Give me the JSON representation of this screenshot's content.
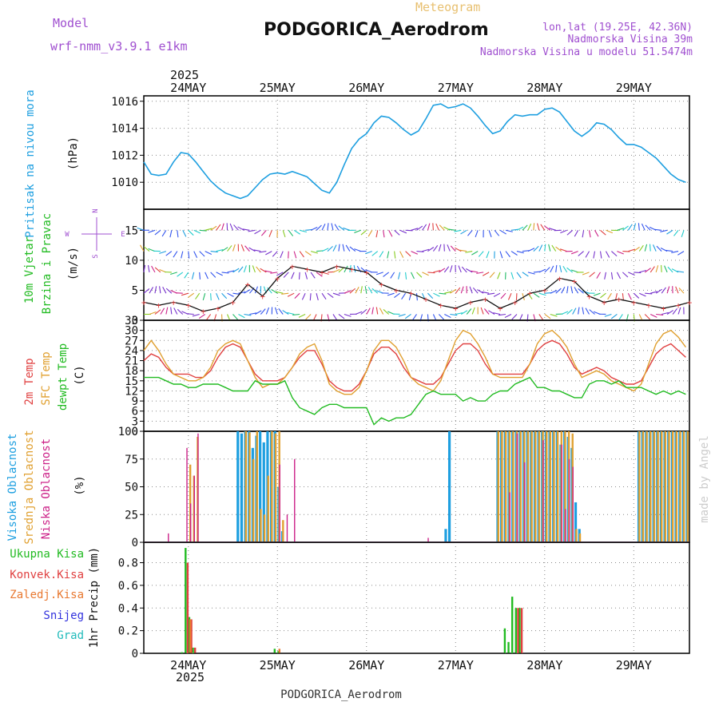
{
  "header": {
    "model_label": "Model",
    "model_name": "wrf-nmm_v3.9.1 e1km",
    "product": "Meteogram",
    "station": "PODGORICA_Aerodrom",
    "coords": "lon,lat (19.25E, 42.36N)",
    "elevation": "Nadmorska Visina 39m",
    "model_elevation": "Nadmorska Visina u modelu 51.5474m",
    "footer_station": "PODGORICA_Aerodrom",
    "credit": "made by Angel"
  },
  "time_axis": {
    "year": "2025",
    "day_labels": [
      "24MAY",
      "25MAY",
      "26MAY",
      "27MAY",
      "28MAY",
      "29MAY"
    ],
    "day_hours": [
      12,
      36,
      60,
      84,
      108,
      132
    ],
    "range_hours": [
      0,
      147
    ]
  },
  "colors": {
    "pressure": "#1e9fe0",
    "wind_label": "#22bb22",
    "temp2m": "#e04040",
    "sfc": "#e0a030",
    "dewpt": "#22bb22",
    "high_cloud": "#1e9fe0",
    "mid_cloud": "#e0a030",
    "low_cloud": "#cc2288",
    "grid": "#888888"
  },
  "chart_data": [
    {
      "type": "line",
      "panel": "pressure",
      "ylabel_left": "Pritisak na nivou mora",
      "unit": "(hPa)",
      "ylim": [
        1008,
        1016.4
      ],
      "yticks": [
        1010,
        1012,
        1014,
        1016
      ],
      "grid": true,
      "series": [
        {
          "x": [
            0,
            2,
            4,
            6,
            8,
            10,
            12,
            14,
            16,
            18,
            20,
            22,
            24,
            26,
            28,
            30,
            32,
            34,
            36,
            38,
            40,
            42,
            44,
            46,
            48,
            50,
            52,
            54,
            56,
            58,
            60,
            62,
            64,
            66,
            68,
            70,
            72,
            74,
            76,
            78,
            80,
            82,
            84,
            86,
            88,
            90,
            92,
            94,
            96,
            98,
            100,
            102,
            104,
            106,
            108,
            110,
            112,
            114,
            116,
            118,
            120,
            122,
            124,
            126,
            128,
            130,
            132,
            134,
            136,
            138,
            140,
            142,
            144,
            146
          ],
          "values": [
            1011.5,
            1010.6,
            1010.5,
            1010.6,
            1011.5,
            1012.2,
            1012.1,
            1011.5,
            1010.8,
            1010.1,
            1009.6,
            1009.2,
            1009.0,
            1008.8,
            1009.0,
            1009.6,
            1010.2,
            1010.6,
            1010.7,
            1010.6,
            1010.8,
            1010.6,
            1010.4,
            1009.9,
            1009.4,
            1009.2,
            1010.0,
            1011.3,
            1012.5,
            1013.2,
            1013.6,
            1014.4,
            1014.9,
            1014.8,
            1014.4,
            1013.9,
            1013.5,
            1013.8,
            1014.7,
            1015.7,
            1015.8,
            1015.5,
            1015.6,
            1015.8,
            1015.5,
            1014.9,
            1014.2,
            1013.6,
            1013.8,
            1014.5,
            1015.0,
            1014.9,
            1015.0,
            1015.0,
            1015.4,
            1015.5,
            1015.2,
            1014.5,
            1013.8,
            1013.4,
            1013.8,
            1014.4,
            1014.3,
            1013.9,
            1013.3,
            1012.8,
            1012.8,
            1012.6,
            1012.2,
            1011.8,
            1011.2,
            1010.6,
            1010.2,
            1010.0
          ]
        }
      ]
    },
    {
      "type": "line",
      "panel": "wind",
      "ylabel_left": [
        "10m Vjetar",
        "Brzina i Pravac"
      ],
      "unit": "(m/s)",
      "compass": {
        "n": "N",
        "s": "S",
        "e": "E",
        "w": "W"
      },
      "ylim": [
        0,
        18.5
      ],
      "yticks": [
        0,
        5,
        10,
        15
      ],
      "grid": true,
      "series": [
        {
          "x": [
            0,
            4,
            8,
            12,
            16,
            20,
            24,
            28,
            32,
            36,
            40,
            44,
            48,
            52,
            56,
            60,
            64,
            68,
            72,
            76,
            80,
            84,
            88,
            92,
            96,
            100,
            104,
            108,
            112,
            116,
            120,
            124,
            128,
            132,
            136,
            140,
            144,
            147
          ],
          "values": [
            3,
            2.5,
            3,
            2.5,
            1.5,
            2,
            3,
            6,
            4,
            7,
            9,
            8.5,
            8,
            9,
            8.5,
            8,
            6,
            5,
            4.5,
            3.5,
            2.5,
            2,
            3,
            3.5,
            2,
            3,
            4.5,
            5,
            7,
            6.5,
            4,
            3,
            3.5,
            3,
            2.5,
            2,
            2.5,
            3
          ]
        }
      ]
    },
    {
      "type": "line",
      "panel": "temperature",
      "ylabel_left": [
        "2m Temp",
        "SFC Temp",
        "dewpt Temp"
      ],
      "unit": "(C)",
      "ylim": [
        0,
        33
      ],
      "yticks": [
        0,
        3,
        6,
        9,
        12,
        15,
        18,
        21,
        24,
        27,
        30,
        33
      ],
      "grid": true,
      "x": [
        0,
        2,
        4,
        6,
        8,
        10,
        12,
        14,
        16,
        18,
        20,
        22,
        24,
        26,
        28,
        30,
        32,
        34,
        36,
        38,
        40,
        42,
        44,
        46,
        48,
        50,
        52,
        54,
        56,
        58,
        60,
        62,
        64,
        66,
        68,
        70,
        72,
        74,
        76,
        78,
        80,
        82,
        84,
        86,
        88,
        90,
        92,
        94,
        96,
        98,
        100,
        102,
        104,
        106,
        108,
        110,
        112,
        114,
        116,
        118,
        120,
        122,
        124,
        126,
        128,
        130,
        132,
        134,
        136,
        138,
        140,
        142,
        144,
        146
      ],
      "series": [
        {
          "name": "2m Temp",
          "values": [
            21,
            23,
            22,
            19,
            17,
            17,
            17,
            16,
            16,
            18,
            22,
            25,
            26,
            25,
            21,
            17,
            15,
            15,
            15,
            16,
            19,
            22,
            24,
            24,
            20,
            15,
            13,
            12,
            12,
            14,
            18,
            23,
            25,
            25,
            23,
            19,
            16,
            15,
            14,
            14,
            16,
            20,
            24,
            26,
            26,
            24,
            20,
            17,
            17,
            17,
            17,
            17,
            20,
            24,
            26,
            27,
            26,
            23,
            19,
            17,
            18,
            19,
            18,
            16,
            15,
            14,
            14,
            15,
            19,
            23,
            25,
            26,
            24,
            22
          ]
        },
        {
          "name": "SFC Temp",
          "values": [
            24,
            27,
            24,
            20,
            17,
            16,
            15,
            15,
            16,
            19,
            24,
            26,
            27,
            26,
            21,
            16,
            13,
            14,
            14,
            16,
            19,
            23,
            25,
            26,
            21,
            14,
            12,
            11,
            11,
            13,
            18,
            24,
            27,
            27,
            25,
            21,
            16,
            14,
            13,
            12,
            15,
            21,
            27,
            30,
            29,
            26,
            22,
            17,
            16,
            16,
            16,
            16,
            20,
            26,
            29,
            30,
            28,
            25,
            20,
            16,
            17,
            18,
            17,
            15,
            14,
            13,
            12,
            14,
            20,
            26,
            29,
            30,
            28,
            25
          ]
        },
        {
          "name": "dewpt Temp",
          "values": [
            16,
            16,
            16,
            15,
            14,
            14,
            13,
            13,
            14,
            14,
            14,
            13,
            12,
            12,
            12,
            15,
            14,
            14,
            14,
            15,
            10,
            7,
            6,
            5,
            7,
            8,
            8,
            7,
            7,
            7,
            7,
            2,
            4,
            3,
            4,
            4,
            5,
            8,
            11,
            12,
            11,
            11,
            11,
            9,
            10,
            9,
            9,
            11,
            12,
            12,
            14,
            15,
            16,
            13,
            13,
            12,
            12,
            11,
            10,
            10,
            14,
            15,
            15,
            14,
            15,
            13,
            13,
            13,
            12,
            11,
            12,
            11,
            12,
            11
          ]
        }
      ]
    },
    {
      "type": "bar",
      "panel": "cloud",
      "ylabel_left": [
        "Visoka Oblacnost",
        "Srednja Oblacnost",
        "Niska Oblacnost"
      ],
      "unit": "(%)",
      "ylim": [
        0,
        100
      ],
      "yticks": [
        0,
        25,
        50,
        75,
        100
      ],
      "grid": true,
      "series": [
        {
          "name": "Visoka Oblacnost",
          "x": [
            25,
            26,
            27,
            28,
            29,
            30,
            31,
            32,
            33,
            34,
            35,
            36,
            37,
            81,
            82,
            95,
            96,
            97,
            98,
            99,
            100,
            101,
            102,
            103,
            104,
            105,
            106,
            107,
            108,
            109,
            110,
            111,
            112,
            113,
            114,
            115,
            116,
            117,
            133,
            134,
            135,
            136,
            137,
            138,
            139,
            140,
            141,
            142,
            143,
            144,
            145,
            146
          ],
          "values": [
            100,
            98,
            100,
            100,
            85,
            96,
            100,
            90,
            100,
            100,
            100,
            50,
            10,
            12,
            100,
            100,
            100,
            100,
            100,
            100,
            100,
            100,
            100,
            100,
            100,
            100,
            100,
            100,
            100,
            100,
            100,
            100,
            88,
            100,
            95,
            85,
            36,
            12,
            100,
            100,
            100,
            100,
            100,
            100,
            100,
            100,
            100,
            100,
            100,
            100,
            100,
            100
          ]
        },
        {
          "name": "Srednja Oblacnost",
          "x": [
            12,
            13,
            14,
            27,
            28,
            29,
            30,
            31,
            32,
            33,
            34,
            35,
            36,
            37,
            95,
            96,
            97,
            98,
            99,
            100,
            101,
            102,
            103,
            104,
            105,
            106,
            107,
            108,
            109,
            110,
            111,
            112,
            113,
            114,
            115,
            116,
            117,
            133,
            134,
            135,
            136,
            137,
            138,
            139,
            140,
            141,
            142,
            143,
            144,
            145,
            146
          ],
          "values": [
            70,
            60,
            95,
            100,
            99,
            75,
            100,
            30,
            25,
            60,
            100,
            98,
            100,
            20,
            100,
            100,
            100,
            100,
            100,
            100,
            100,
            100,
            100,
            100,
            100,
            100,
            100,
            100,
            100,
            100,
            100,
            100,
            100,
            100,
            98,
            12,
            8,
            100,
            100,
            100,
            100,
            100,
            100,
            100,
            100,
            100,
            100,
            100,
            100,
            100,
            100
          ]
        },
        {
          "name": "Niska Oblacnost",
          "x": [
            6,
            11,
            12,
            13,
            14,
            36,
            38,
            40,
            76,
            98,
            100,
            102,
            107,
            112,
            113,
            114,
            115
          ],
          "values": [
            8,
            85,
            35,
            60,
            98,
            70,
            25,
            75,
            4,
            45,
            98,
            72,
            92,
            88,
            30,
            75,
            68
          ]
        }
      ]
    },
    {
      "type": "bar",
      "panel": "precip",
      "legend": [
        "Ukupna Kisa",
        "Konvek.Kisa",
        "Zaledj.Kisa",
        "Snijeg",
        "Grad"
      ],
      "ylabel": "1hr Precip (mm)",
      "ylim": [
        0,
        0.98
      ],
      "yticks": [
        0,
        0.2,
        0.4,
        0.6,
        0.8
      ],
      "grid": true,
      "series": [
        {
          "name": "Ukupna Kisa",
          "x": [
            10,
            11,
            12,
            13,
            35,
            36,
            97,
            98,
            99,
            100,
            101
          ],
          "values": [
            0.01,
            0.93,
            0.32,
            0.05,
            0.04,
            0.02,
            0.22,
            0.1,
            0.5,
            0.4,
            0.4
          ]
        },
        {
          "name": "Konvek.Kisa",
          "x": [
            11,
            12,
            13,
            100,
            101
          ],
          "values": [
            0.8,
            0.3,
            0.05,
            0.4,
            0.4
          ]
        },
        {
          "name": "Zaledj.Kisa",
          "x": [
            12,
            36
          ],
          "values": [
            0.3,
            0.04
          ]
        }
      ]
    }
  ]
}
